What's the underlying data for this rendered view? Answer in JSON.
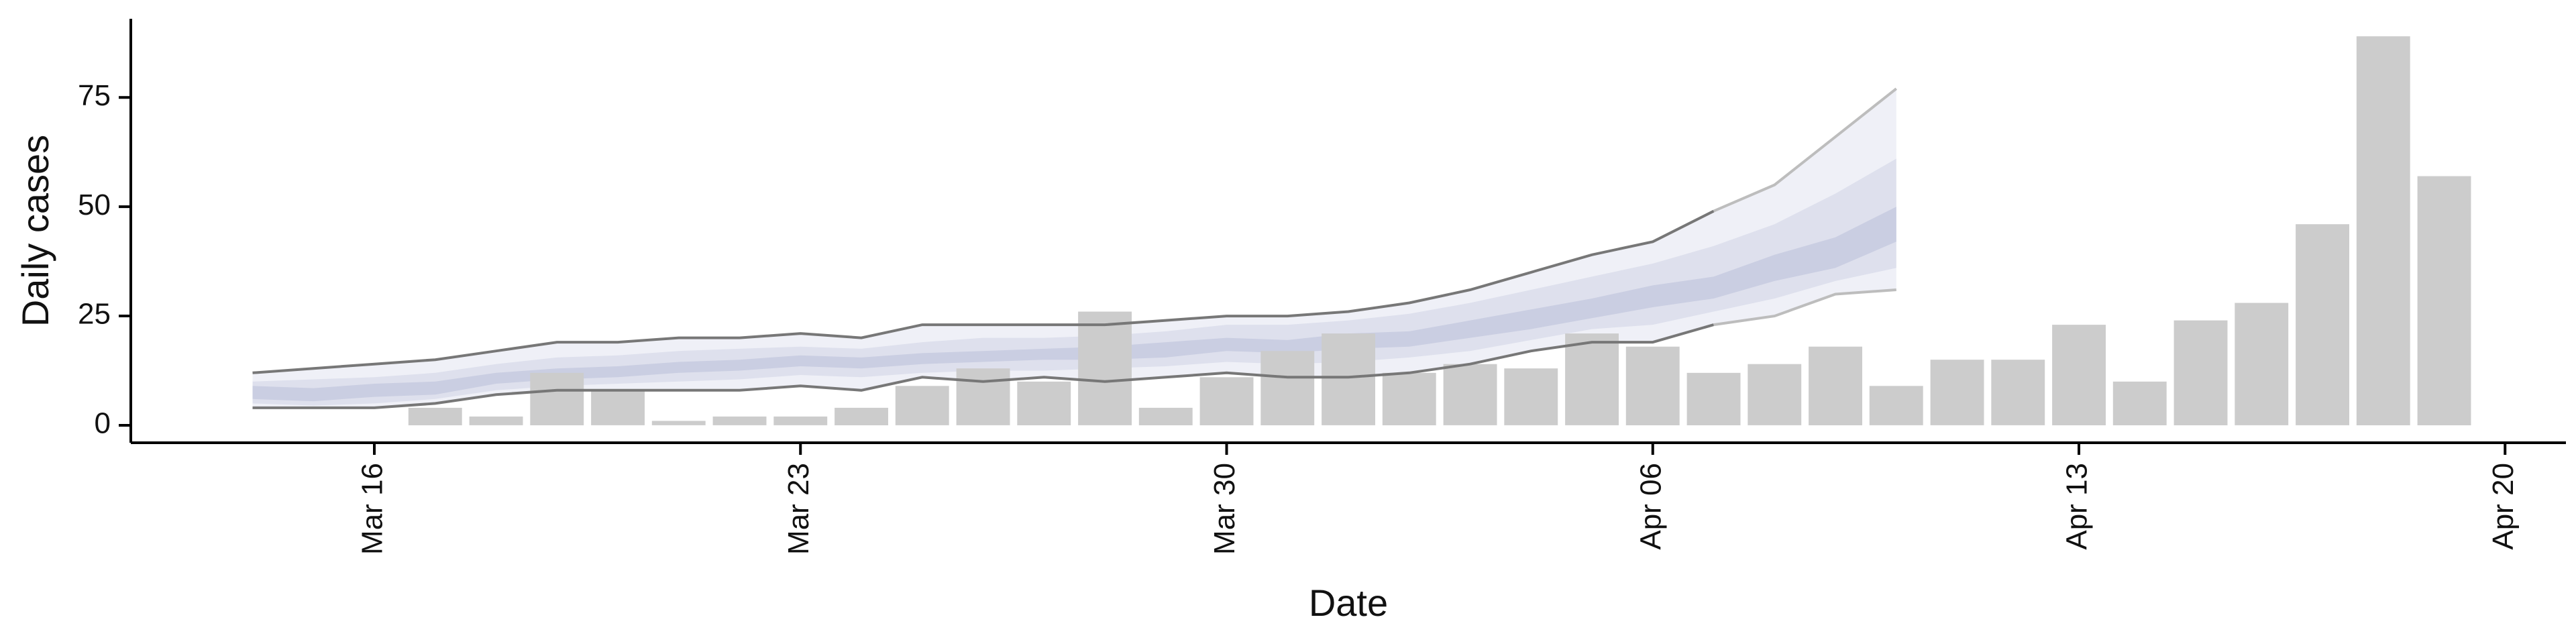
{
  "chart_data": {
    "type": "bar",
    "xlabel": "Date",
    "ylabel": "Daily cases",
    "x_range": [
      "2020-03-12",
      "2020-04-21"
    ],
    "ylim": [
      -4,
      93
    ],
    "grid": false,
    "x_ticks": [
      {
        "date": "2020-03-16",
        "label": "Mar 16"
      },
      {
        "date": "2020-03-23",
        "label": "Mar 23"
      },
      {
        "date": "2020-03-30",
        "label": "Mar 30"
      },
      {
        "date": "2020-04-06",
        "label": "Apr 06"
      },
      {
        "date": "2020-04-13",
        "label": "Apr 13"
      },
      {
        "date": "2020-04-20",
        "label": "Apr 20"
      }
    ],
    "y_ticks": [
      0,
      25,
      50,
      75
    ],
    "colors": {
      "bars": "#cccccc",
      "band_outer": "#e6e8f2",
      "band_mid": "#d2d6e6",
      "band_inner": "#b9bfd8",
      "interval_line": "#777777",
      "interval_line_light": "#bdbdbd",
      "axis": "#000000"
    },
    "bars": [
      {
        "date": "2020-03-17",
        "value": 4
      },
      {
        "date": "2020-03-18",
        "value": 2
      },
      {
        "date": "2020-03-19",
        "value": 12
      },
      {
        "date": "2020-03-20",
        "value": 8
      },
      {
        "date": "2020-03-21",
        "value": 1
      },
      {
        "date": "2020-03-22",
        "value": 2
      },
      {
        "date": "2020-03-23",
        "value": 2
      },
      {
        "date": "2020-03-24",
        "value": 4
      },
      {
        "date": "2020-03-25",
        "value": 9
      },
      {
        "date": "2020-03-26",
        "value": 13
      },
      {
        "date": "2020-03-27",
        "value": 10
      },
      {
        "date": "2020-03-28",
        "value": 26
      },
      {
        "date": "2020-03-29",
        "value": 4
      },
      {
        "date": "2020-03-30",
        "value": 11
      },
      {
        "date": "2020-03-31",
        "value": 17
      },
      {
        "date": "2020-04-01",
        "value": 21
      },
      {
        "date": "2020-04-02",
        "value": 12
      },
      {
        "date": "2020-04-03",
        "value": 14
      },
      {
        "date": "2020-04-04",
        "value": 13
      },
      {
        "date": "2020-04-05",
        "value": 21
      },
      {
        "date": "2020-04-06",
        "value": 18
      },
      {
        "date": "2020-04-07",
        "value": 12
      },
      {
        "date": "2020-04-08",
        "value": 14
      },
      {
        "date": "2020-04-09",
        "value": 18
      },
      {
        "date": "2020-04-10",
        "value": 9
      },
      {
        "date": "2020-04-11",
        "value": 15
      },
      {
        "date": "2020-04-12",
        "value": 15
      },
      {
        "date": "2020-04-13",
        "value": 23
      },
      {
        "date": "2020-04-14",
        "value": 10
      },
      {
        "date": "2020-04-15",
        "value": 24
      },
      {
        "date": "2020-04-16",
        "value": 28
      },
      {
        "date": "2020-04-17",
        "value": 46
      },
      {
        "date": "2020-04-18",
        "value": 89
      },
      {
        "date": "2020-04-19",
        "value": 57
      }
    ],
    "estimate": {
      "dates": [
        "2020-03-14",
        "2020-03-15",
        "2020-03-16",
        "2020-03-17",
        "2020-03-18",
        "2020-03-19",
        "2020-03-20",
        "2020-03-21",
        "2020-03-22",
        "2020-03-23",
        "2020-03-24",
        "2020-03-25",
        "2020-03-26",
        "2020-03-27",
        "2020-03-28",
        "2020-03-29",
        "2020-03-30",
        "2020-03-31",
        "2020-04-01",
        "2020-04-02",
        "2020-04-03",
        "2020-04-04",
        "2020-04-05",
        "2020-04-06",
        "2020-04-07",
        "2020-04-08",
        "2020-04-09",
        "2020-04-10"
      ],
      "upper_90": [
        12,
        13,
        14,
        15,
        17,
        19,
        19,
        20,
        20,
        21,
        20,
        23,
        23,
        23,
        23,
        24,
        25,
        25,
        26,
        28,
        31,
        35,
        39,
        42,
        49,
        55,
        66,
        77
      ],
      "upper_50": [
        10,
        10.5,
        11,
        12,
        14,
        15.5,
        16,
        17,
        17.5,
        18,
        17.5,
        19,
        20,
        20,
        20.5,
        21.5,
        23,
        23,
        24,
        25.5,
        28,
        31,
        34,
        37,
        41,
        46,
        53,
        61
      ],
      "upper_20": [
        9,
        8.5,
        9.5,
        10,
        12,
        13,
        13.5,
        14.5,
        15,
        16,
        15.5,
        16.5,
        17,
        17.5,
        18,
        19,
        20,
        19.5,
        21,
        21.5,
        24,
        26.5,
        29,
        32,
        34,
        39,
        43,
        50
      ],
      "lower_20": [
        6,
        5.5,
        6.5,
        7,
        9.5,
        10.5,
        11,
        12,
        12.5,
        13.5,
        13,
        14,
        14.5,
        15,
        15,
        15.5,
        17,
        16.5,
        17.5,
        18,
        20,
        22,
        24.5,
        27,
        29,
        33,
        36,
        42
      ],
      "lower_50": [
        5,
        4.5,
        5,
        6,
        8,
        9,
        9.5,
        10,
        10.5,
        11.5,
        11,
        12,
        12.5,
        12.5,
        13,
        13.5,
        14.5,
        14,
        14.5,
        15.5,
        17,
        19.5,
        22,
        23,
        26,
        29,
        33,
        36
      ],
      "lower_90": [
        4,
        4,
        4,
        5,
        7,
        8,
        8,
        8,
        8,
        9,
        8,
        11,
        10,
        11,
        10,
        11,
        12,
        11,
        11,
        12,
        14,
        17,
        19,
        19,
        23,
        25,
        30,
        31
      ]
    }
  }
}
